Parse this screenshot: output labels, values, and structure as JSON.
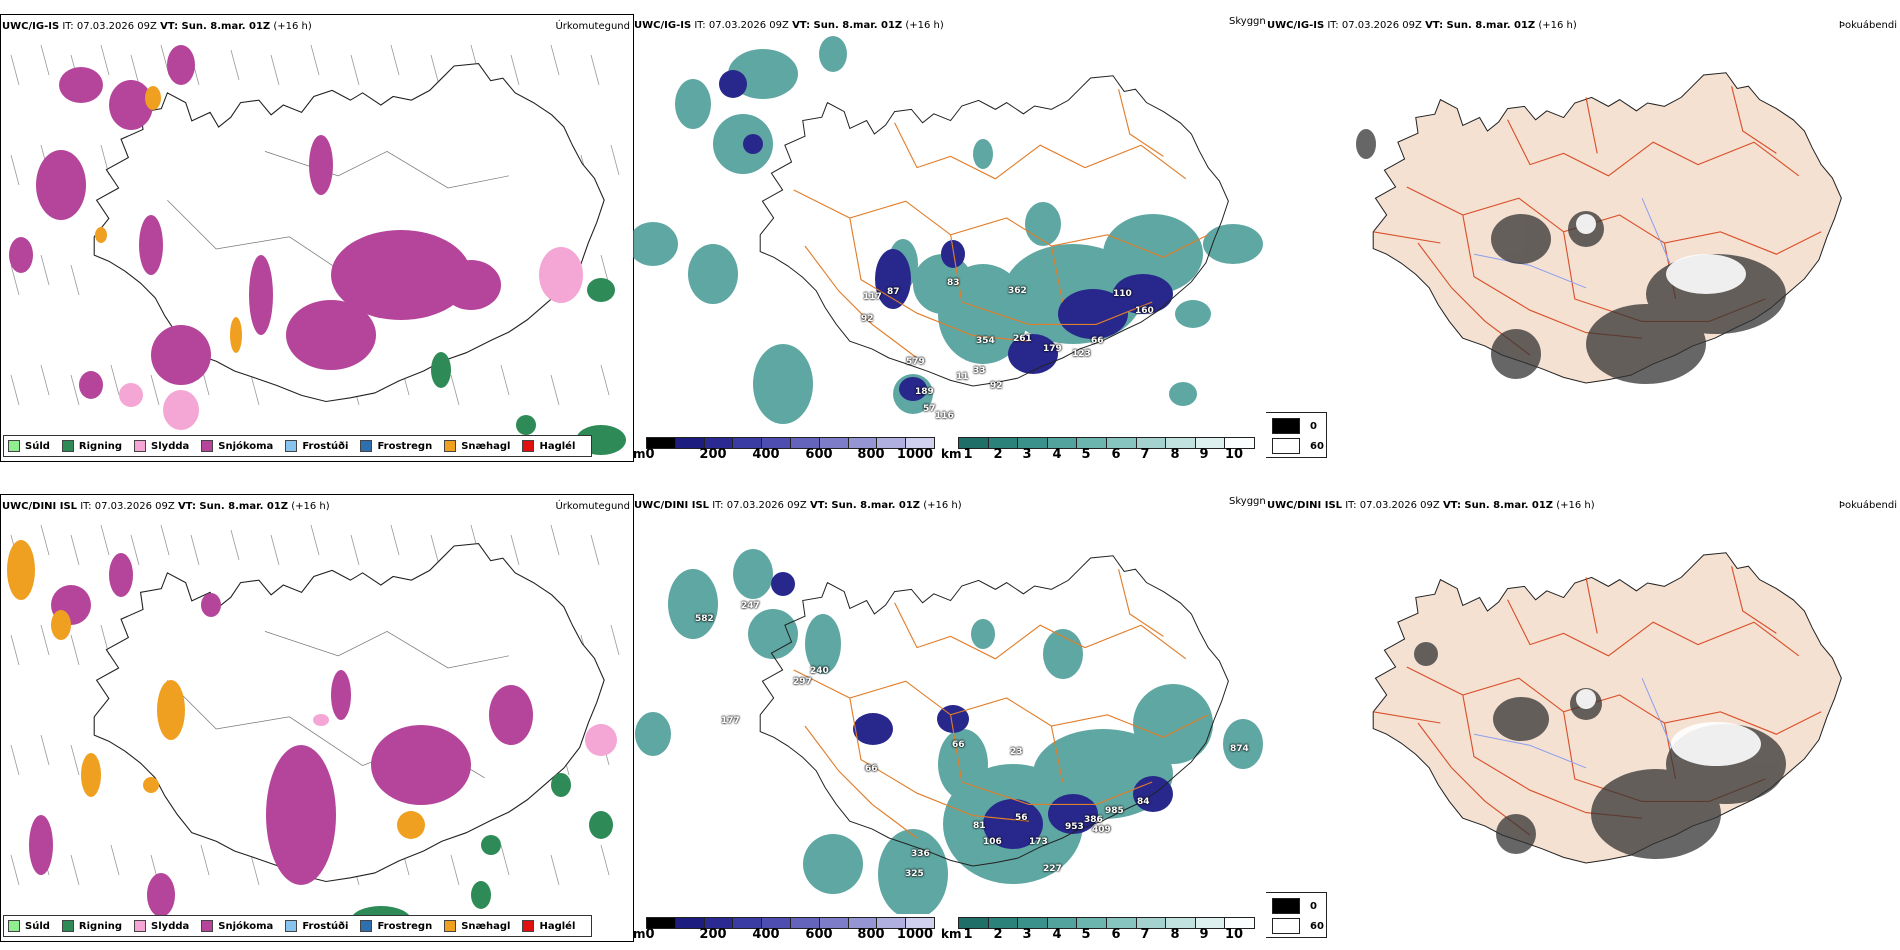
{
  "rows": [
    {
      "model": "UWC/IG-IS",
      "it": "IT: 07.03.2026 09Z",
      "vt": "VT: Sun. 8.mar. 01Z",
      "offset": "(+16 h)",
      "titles": {
        "precip": "Úrkomutegund",
        "vis": "Skyggni",
        "fog": "Þokuábendi"
      },
      "cloud_numbers": [
        "57",
        "116",
        "189",
        "92",
        "117",
        "87",
        "92",
        "83",
        "362",
        "354",
        "579",
        "261",
        "179",
        "123",
        "110",
        "160",
        "66",
        "33",
        "11"
      ]
    },
    {
      "model": "UWC/DINI ISL",
      "it": "IT: 07.03.2026 09Z",
      "vt": "VT: Sun. 8.mar. 01Z",
      "offset": "(+16 h)",
      "titles": {
        "precip": "Úrkomutegund",
        "vis": "Skyggni",
        "fog": "Þokuábendi"
      },
      "cloud_numbers": [
        "582",
        "247",
        "297",
        "240",
        "177",
        "66",
        "66",
        "23",
        "81",
        "56",
        "953",
        "386",
        "985",
        "84",
        "173",
        "106",
        "336",
        "325",
        "227",
        "409",
        "874"
      ]
    }
  ],
  "precip_legend": [
    {
      "label": "Súld",
      "color": "#90ee90"
    },
    {
      "label": "Rigning",
      "color": "#2e8b57"
    },
    {
      "label": "Slydda",
      "color": "#f4a6d4"
    },
    {
      "label": "Snjókoma",
      "color": "#b5449b"
    },
    {
      "label": "Frostúði",
      "color": "#87c4ee"
    },
    {
      "label": "Frostregn",
      "color": "#2f6fae"
    },
    {
      "label": "Snæhagl",
      "color": "#f0a020"
    },
    {
      "label": "Haglél",
      "color": "#e01010"
    }
  ],
  "cloud_base_bar": {
    "unit": "m",
    "ticks": [
      "0",
      "200",
      "400",
      "600",
      "800",
      "1000"
    ]
  },
  "visibility_bar": {
    "unit": "km",
    "ticks": [
      "1",
      "2",
      "3",
      "4",
      "5",
      "6",
      "7",
      "8",
      "9",
      "10"
    ]
  },
  "fog_legend": {
    "low": "0",
    "high": "60"
  }
}
